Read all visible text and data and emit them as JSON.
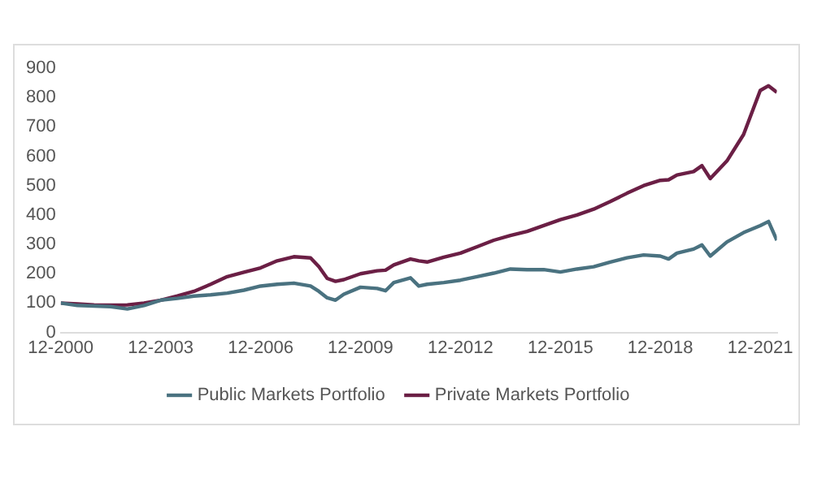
{
  "chart_data": {
    "type": "line",
    "x": [
      "2000-12",
      "2001-06",
      "2001-12",
      "2002-06",
      "2002-12",
      "2003-06",
      "2003-12",
      "2004-06",
      "2004-12",
      "2005-06",
      "2005-12",
      "2006-06",
      "2006-12",
      "2007-06",
      "2007-12",
      "2008-06",
      "2008-09",
      "2008-12",
      "2009-03",
      "2009-06",
      "2009-12",
      "2010-06",
      "2010-09",
      "2010-12",
      "2011-06",
      "2011-09",
      "2011-12",
      "2012-06",
      "2012-12",
      "2013-06",
      "2013-12",
      "2014-06",
      "2014-12",
      "2015-06",
      "2015-12",
      "2016-06",
      "2016-12",
      "2017-06",
      "2017-12",
      "2018-06",
      "2018-12",
      "2019-03",
      "2019-06",
      "2019-12",
      "2020-03",
      "2020-06",
      "2020-12",
      "2021-06",
      "2021-12",
      "2022-03",
      "2022-06"
    ],
    "series": [
      {
        "name": "Public Markets Portfolio",
        "color": "#4a7280",
        "values": [
          100,
          92,
          90,
          88,
          80,
          92,
          110,
          116,
          124,
          128,
          134,
          144,
          158,
          164,
          168,
          158,
          140,
          118,
          110,
          130,
          154,
          150,
          142,
          170,
          186,
          158,
          164,
          170,
          178,
          190,
          202,
          216,
          214,
          214,
          206,
          216,
          224,
          240,
          254,
          264,
          260,
          250,
          270,
          284,
          298,
          260,
          308,
          340,
          364,
          378,
          314
        ]
      },
      {
        "name": "Private Markets Portfolio",
        "color": "#6b1f45",
        "values": [
          100,
          97,
          94,
          93,
          94,
          100,
          110,
          124,
          140,
          164,
          190,
          205,
          220,
          244,
          258,
          254,
          224,
          184,
          174,
          180,
          200,
          210,
          212,
          230,
          250,
          244,
          240,
          256,
          270,
          292,
          314,
          330,
          344,
          364,
          384,
          400,
          420,
          446,
          474,
          500,
          518,
          520,
          536,
          548,
          568,
          524,
          584,
          674,
          824,
          840,
          818
        ]
      }
    ],
    "xlim": [
      "2000-12",
      "2022-06"
    ],
    "xticks": [
      {
        "value": "2000-12",
        "label": "12-2000"
      },
      {
        "value": "2003-12",
        "label": "12-2003"
      },
      {
        "value": "2006-12",
        "label": "12-2006"
      },
      {
        "value": "2009-12",
        "label": "12-2009"
      },
      {
        "value": "2012-12",
        "label": "12-2012"
      },
      {
        "value": "2015-12",
        "label": "12-2015"
      },
      {
        "value": "2018-12",
        "label": "12-2018"
      },
      {
        "value": "2021-12",
        "label": "12-2021"
      }
    ],
    "ylim": [
      0,
      900
    ],
    "yticks": [
      0,
      100,
      200,
      300,
      400,
      500,
      600,
      700,
      800,
      900
    ],
    "grid": false,
    "legend": "bottom",
    "marker": "none",
    "line_style": "solid"
  }
}
